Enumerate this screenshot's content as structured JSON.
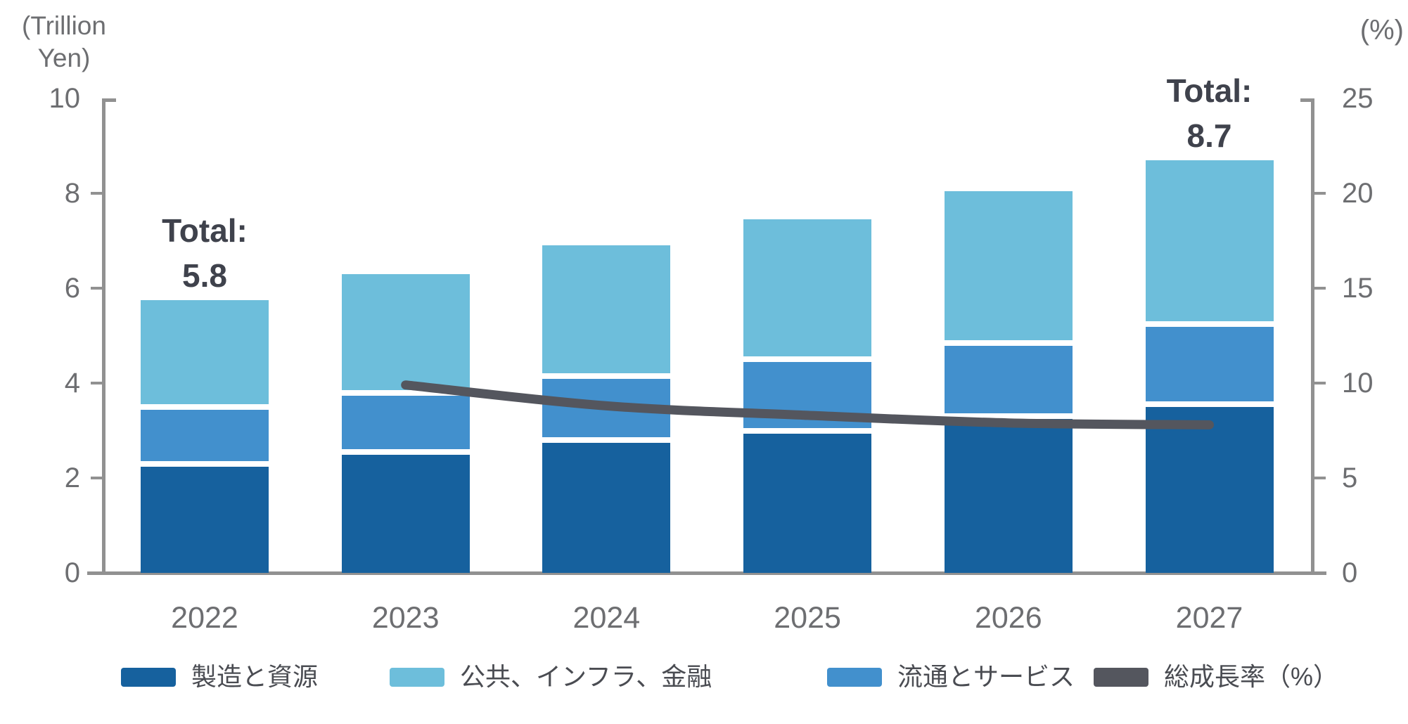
{
  "chart_data": {
    "type": "bar",
    "subtype": "stacked-bar-with-line-combo",
    "title": "",
    "categories": [
      "2022",
      "2023",
      "2024",
      "2025",
      "2026",
      "2027"
    ],
    "series": [
      {
        "name": "製造と資源",
        "color": "#16619e",
        "values": [
          2.3,
          2.55,
          2.8,
          3.0,
          3.3,
          3.55
        ]
      },
      {
        "name": "流通とサービス",
        "color": "#4290cd",
        "values": [
          1.2,
          1.25,
          1.35,
          1.5,
          1.55,
          1.7
        ]
      },
      {
        "name": "公共、インフラ、金融",
        "color": "#6dbedb",
        "values": [
          2.25,
          2.5,
          2.75,
          2.95,
          3.2,
          3.45
        ]
      }
    ],
    "totals": [
      5.8,
      6.3,
      6.9,
      7.45,
      8.05,
      8.7
    ],
    "line_series": {
      "name": "総成長率（%）",
      "color": "#54565e",
      "axis": "right",
      "x": [
        "2023",
        "2024",
        "2025",
        "2026",
        "2027"
      ],
      "values": [
        9.9,
        8.8,
        8.3,
        7.9,
        7.8
      ]
    },
    "left_axis": {
      "label": "(Trillion Yen)",
      "range": [
        0,
        10
      ],
      "ticks": [
        0,
        2,
        4,
        6,
        8,
        10
      ]
    },
    "right_axis": {
      "label": "(%)",
      "range": [
        0,
        25
      ],
      "ticks": [
        0,
        5,
        10,
        15,
        20,
        25
      ]
    },
    "annotations": [
      {
        "category": "2022",
        "lines": [
          "Total:",
          "5.8"
        ]
      },
      {
        "category": "2027",
        "lines": [
          "Total:",
          "8.7"
        ]
      }
    ],
    "legend": [
      {
        "label": "製造と資源",
        "color": "#16619e"
      },
      {
        "label": "公共、インフラ、金融",
        "color": "#6dbedb"
      },
      {
        "label": "流通とサービス",
        "color": "#4290cd"
      },
      {
        "label": "総成長率（%）",
        "color": "#54565e"
      }
    ],
    "grid": false,
    "legend_position": "bottom"
  }
}
